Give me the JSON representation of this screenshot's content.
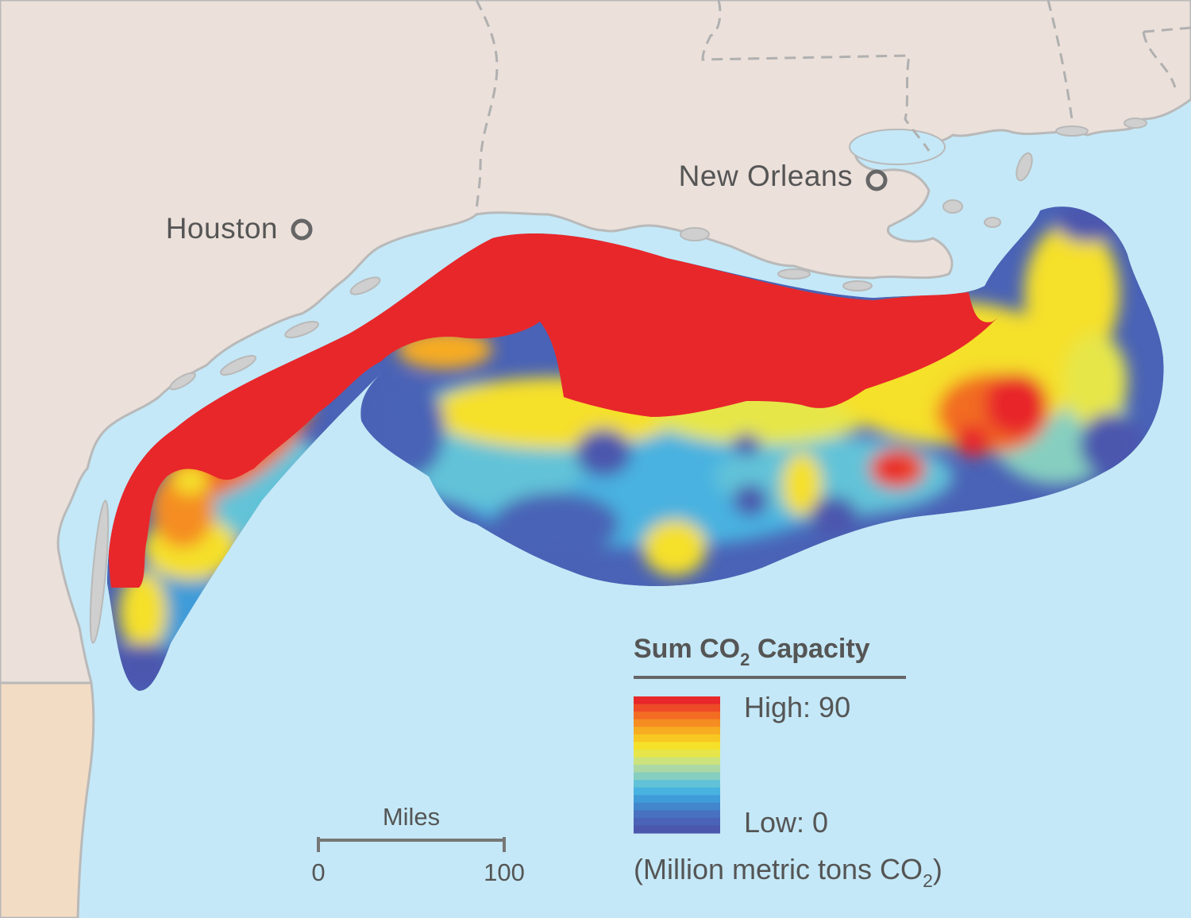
{
  "cities": {
    "houston": "Houston",
    "new_orleans": "New Orleans"
  },
  "legend": {
    "title_prefix": "Sum CO",
    "title_sub": "2",
    "title_suffix": " Capacity",
    "high_label": "High: 90",
    "low_label": "Low: 0",
    "unit_prefix": "(Million metric tons CO",
    "unit_sub": "2",
    "unit_suffix": ")",
    "ramp_colors": [
      "#e8272a",
      "#ee4a28",
      "#f26c24",
      "#f58d22",
      "#f7ac22",
      "#f8c822",
      "#f5e02a",
      "#e6e64a",
      "#cce27c",
      "#abd8a4",
      "#86cfc0",
      "#62c3d8",
      "#48b2e0",
      "#3f9cd8",
      "#4286cc",
      "#4872c0",
      "#4a63b6",
      "#4b57ad"
    ]
  },
  "scale_bar": {
    "title": "Miles",
    "start": "0",
    "end": "100"
  },
  "colors": {
    "water": "#c4e8f7",
    "land": "#ebe0da",
    "mexico_land": "#f2dcc4",
    "coast_stroke": "#b9b9b9",
    "text": "#555555",
    "high": "#e8272a",
    "low": "#4b57ad"
  }
}
